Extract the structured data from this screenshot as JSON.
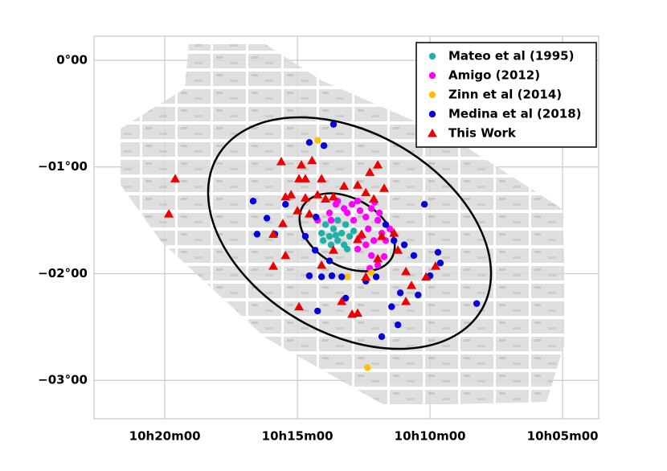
{
  "chart_data": {
    "type": "scatter",
    "xlim": [
      22.67,
      3.64
    ],
    "ylim": [
      0.226,
      -3.36
    ],
    "xticks": [
      {
        "value": 20,
        "label": "10h20m00"
      },
      {
        "value": 15,
        "label": "10h15m00"
      },
      {
        "value": 10,
        "label": "10h10m00"
      },
      {
        "value": 5,
        "label": "10h05m00"
      }
    ],
    "yticks": [
      {
        "value": 0,
        "label": "0°00"
      },
      {
        "value": -1,
        "label": "−01°00"
      },
      {
        "value": -2,
        "label": "−02°00"
      },
      {
        "value": -3,
        "label": "−03°00"
      }
    ],
    "grid": true,
    "legend": "upper right",
    "series": [
      {
        "name": "Mateo et al (1995)",
        "color": "#20b2aa",
        "marker": "circle",
        "x": [
          14.09,
          13.94,
          13.79,
          13.64,
          13.48,
          13.33,
          13.18,
          13.48,
          13.24,
          13.03,
          13.73,
          12.88,
          14.03,
          13.55,
          13.12
        ],
        "values": [
          -1.62,
          -1.54,
          -1.65,
          -1.58,
          -1.69,
          -1.62,
          -1.54,
          -1.5,
          -1.73,
          -1.65,
          -1.73,
          -1.6,
          -1.69,
          -1.64,
          -1.77
        ]
      },
      {
        "name": "Amigo (2012)",
        "color": "#ff00ff",
        "marker": "circle",
        "x": [
          13.79,
          13.55,
          13.24,
          12.94,
          12.64,
          12.42,
          12.21,
          12.09,
          11.97,
          11.82,
          11.67,
          11.73,
          11.97,
          12.21,
          12.42,
          12.58,
          12.73,
          12.33,
          12.88,
          13.12,
          13.73,
          12.73,
          12.12,
          11.91,
          11.52,
          12.27,
          14.24,
          13.48
        ],
        "values": [
          -1.43,
          -1.35,
          -1.39,
          -1.35,
          -1.41,
          -1.47,
          -1.39,
          -1.33,
          -1.5,
          -1.62,
          -1.69,
          -1.84,
          -1.92,
          -1.83,
          -1.73,
          -1.65,
          -1.77,
          -1.58,
          -1.5,
          -1.43,
          -1.5,
          -1.32,
          -1.69,
          -1.43,
          -1.58,
          -1.95,
          -1.5,
          -1.32
        ]
      },
      {
        "name": "Zinn et al (2014)",
        "color": "#ffc000",
        "marker": "circle",
        "x": [
          14.24,
          13.12,
          12.36,
          12.21
        ],
        "values": [
          -0.75,
          -2.03,
          -2.88,
          -1.99
        ]
      },
      {
        "name": "Medina et al (2018)",
        "color": "#0000dd",
        "marker": "circle",
        "x": [
          13.64,
          14.55,
          14.0,
          16.67,
          16.15,
          16.52,
          15.85,
          15.45,
          14.3,
          14.33,
          14.7,
          13.79,
          13.7,
          14.55,
          14.09,
          13.33,
          14.24,
          13.18,
          12.03,
          11.36,
          10.97,
          10.61,
          11.67,
          10.21,
          9.7,
          9.61,
          10.0,
          10.45,
          11.12,
          11.45,
          11.21,
          11.82,
          8.24,
          12.42
        ],
        "values": [
          -0.6,
          -0.77,
          -0.8,
          -1.32,
          -1.48,
          -1.63,
          -1.63,
          -1.35,
          -1.47,
          -1.78,
          -1.65,
          -1.88,
          -2.02,
          -2.02,
          -2.03,
          -2.03,
          -2.35,
          -2.23,
          -2.03,
          -1.69,
          -1.73,
          -1.83,
          -1.54,
          -1.35,
          -1.8,
          -1.9,
          -2.02,
          -2.2,
          -2.18,
          -2.31,
          -2.48,
          -2.59,
          -2.28,
          -2.07
        ]
      },
      {
        "name": "This Work",
        "color": "#ee0000",
        "marker": "triangle",
        "x": [
          19.61,
          19.85,
          15.61,
          14.85,
          14.45,
          14.7,
          14.09,
          14.94,
          15.45,
          15.24,
          14.7,
          14.24,
          13.94,
          13.64,
          13.24,
          12.73,
          12.27,
          11.97,
          12.42,
          12.12,
          11.73,
          15.0,
          14.55,
          15.55,
          15.91,
          15.45,
          15.91,
          14.09,
          13.64,
          12.73,
          12.58,
          11.82,
          11.36,
          11.21,
          11.97,
          10.91,
          10.7,
          10.15,
          9.79,
          10.91,
          14.94,
          12.94,
          12.73,
          12.42,
          13.33
        ],
        "values": [
          -1.11,
          -1.44,
          -0.95,
          -0.98,
          -0.94,
          -1.11,
          -1.11,
          -1.11,
          -1.28,
          -1.26,
          -1.29,
          -1.26,
          -1.3,
          -1.28,
          -1.18,
          -1.17,
          -1.05,
          -0.98,
          -1.24,
          -1.3,
          -1.2,
          -1.41,
          -1.44,
          -1.53,
          -1.63,
          -1.83,
          -1.93,
          -1.92,
          -1.78,
          -1.68,
          -1.63,
          -1.65,
          -1.62,
          -1.78,
          -1.86,
          -1.98,
          -2.11,
          -2.03,
          -1.93,
          -2.26,
          -2.31,
          -2.38,
          -2.37,
          -2.03,
          -2.26
        ]
      }
    ]
  }
}
